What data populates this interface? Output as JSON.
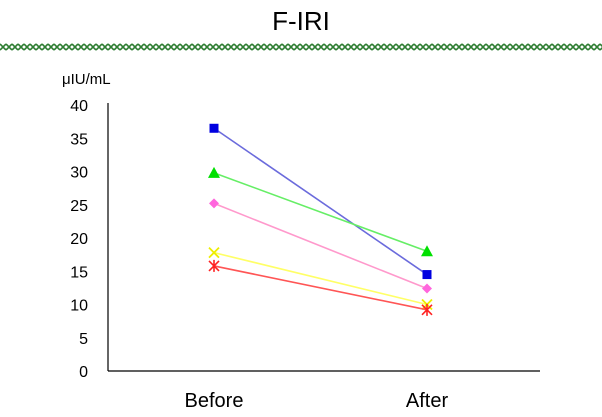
{
  "chart_data": {
    "type": "line",
    "title": "F-IRI",
    "ylabel": "μIU/mL",
    "xlabel": "",
    "categories": [
      "Before",
      "After"
    ],
    "ylim": [
      0,
      40
    ],
    "yticks": [
      0,
      5,
      10,
      15,
      20,
      25,
      30,
      35,
      40
    ],
    "grid": false,
    "series": [
      {
        "values": [
          36.5,
          14.5
        ],
        "color": "#6b6bdc",
        "marker": "square",
        "marker_color": "#0000e0"
      },
      {
        "values": [
          29.8,
          18.0
        ],
        "color": "#66ee66",
        "marker": "triangle",
        "marker_color": "#00e000"
      },
      {
        "values": [
          25.2,
          12.4
        ],
        "color": "#ff99cc",
        "marker": "diamond",
        "marker_color": "#ff66dd"
      },
      {
        "values": [
          17.8,
          10.0
        ],
        "color": "#ffff66",
        "marker": "x",
        "marker_color": "#eeee00"
      },
      {
        "values": [
          15.8,
          9.2
        ],
        "color": "#ff5555",
        "marker": "asterisk",
        "marker_color": "#ff2222"
      }
    ]
  },
  "header": {
    "divider_color": "#2e7d32"
  }
}
